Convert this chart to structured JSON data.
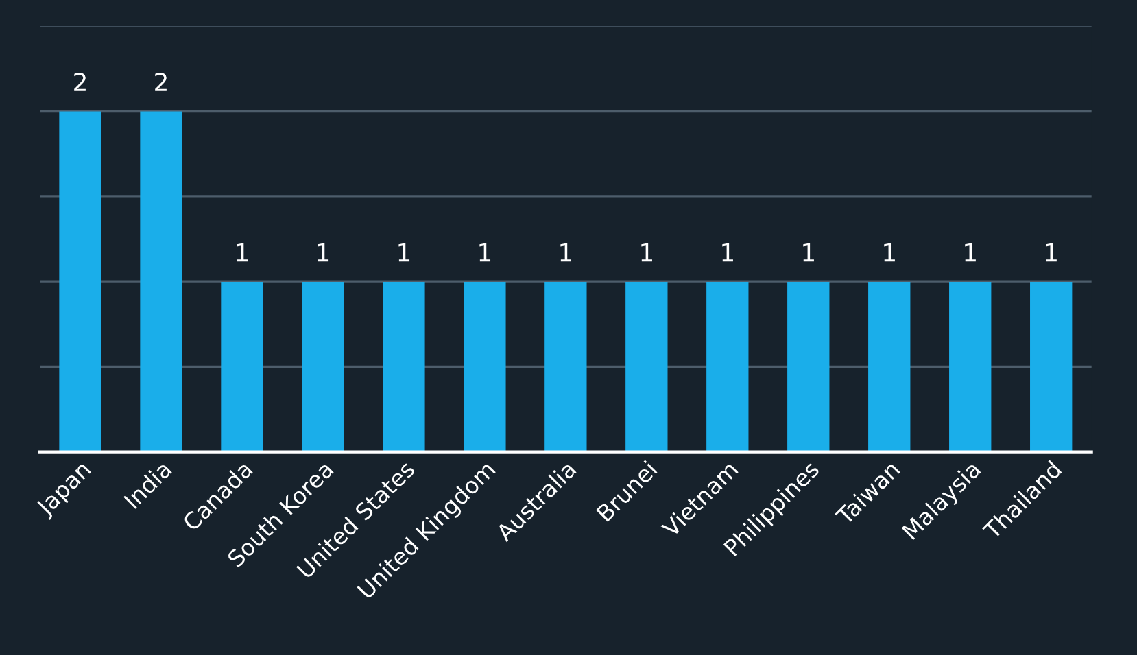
{
  "chart_data": {
    "type": "bar",
    "categories": [
      "Japan",
      "India",
      "Canada",
      "South Korea",
      "United States",
      "United Kingdom",
      "Australia",
      "Brunei",
      "Vietnam",
      "Philippines",
      "Taiwan",
      "Malaysia",
      "Thailand"
    ],
    "values": [
      2,
      2,
      1,
      1,
      1,
      1,
      1,
      1,
      1,
      1,
      1,
      1,
      1
    ],
    "color": "#1aaeea",
    "ylim": [
      0,
      2.5
    ],
    "yticks": [
      {
        "value": 0,
        "label": null
      },
      {
        "value": 0.5,
        "label": null
      },
      {
        "value": 1,
        "label": null
      },
      {
        "value": 1.5,
        "label": null
      },
      {
        "value": 2,
        "label": null
      },
      {
        "value": 2.5,
        "label": null
      }
    ],
    "tick_labels": "x",
    "grid": "y",
    "data_labels": true
  }
}
